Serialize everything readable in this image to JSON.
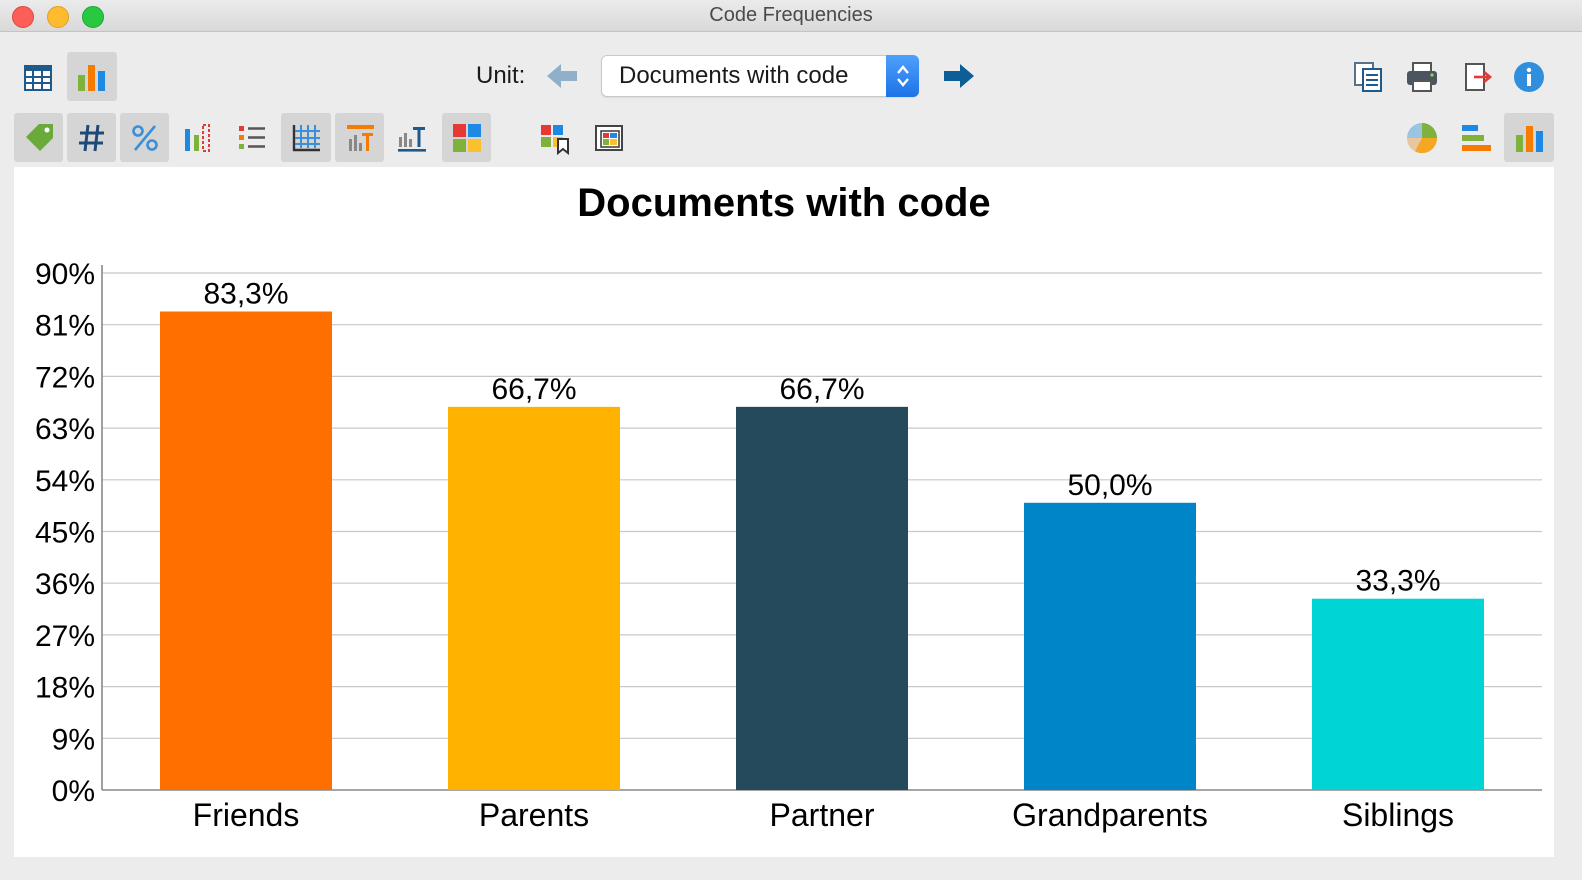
{
  "window": {
    "title": "Code Frequencies"
  },
  "toolbar": {
    "unit_label": "Unit:",
    "unit_select_value": "Documents with code",
    "left_icons": [
      "table-view-icon",
      "chart-view-icon"
    ],
    "right_icons": [
      "copy-icon",
      "print-icon",
      "export-icon",
      "info-icon"
    ],
    "row2_icons": [
      "tag-icon",
      "hash-icon",
      "percent-icon",
      "chart-options-icon",
      "list-icon",
      "grid-icon",
      "title-icon",
      "axis-label-icon",
      "color-palette-icon",
      "legend-icon",
      "frame-icon"
    ],
    "chart_type_icons": [
      "pie-chart-icon",
      "horizontal-bar-icon",
      "vertical-bar-icon"
    ]
  },
  "chart_data": {
    "type": "bar",
    "title": "Documents with code",
    "categories": [
      "Friends",
      "Parents",
      "Partner",
      "Grandparents",
      "Siblings"
    ],
    "values": [
      83.3,
      66.7,
      66.7,
      50.0,
      33.3
    ],
    "value_labels": [
      "83,3%",
      "66,7%",
      "66,7%",
      "50,0%",
      "33,3%"
    ],
    "colors": [
      "#ff6f00",
      "#ffb300",
      "#244a5c",
      "#0085c8",
      "#00d4d4"
    ],
    "yticks": [
      "0%",
      "9%",
      "18%",
      "27%",
      "36%",
      "45%",
      "54%",
      "63%",
      "72%",
      "81%",
      "90%"
    ],
    "ylim": [
      0,
      90
    ],
    "grid": true,
    "xlabel": "",
    "ylabel": ""
  }
}
